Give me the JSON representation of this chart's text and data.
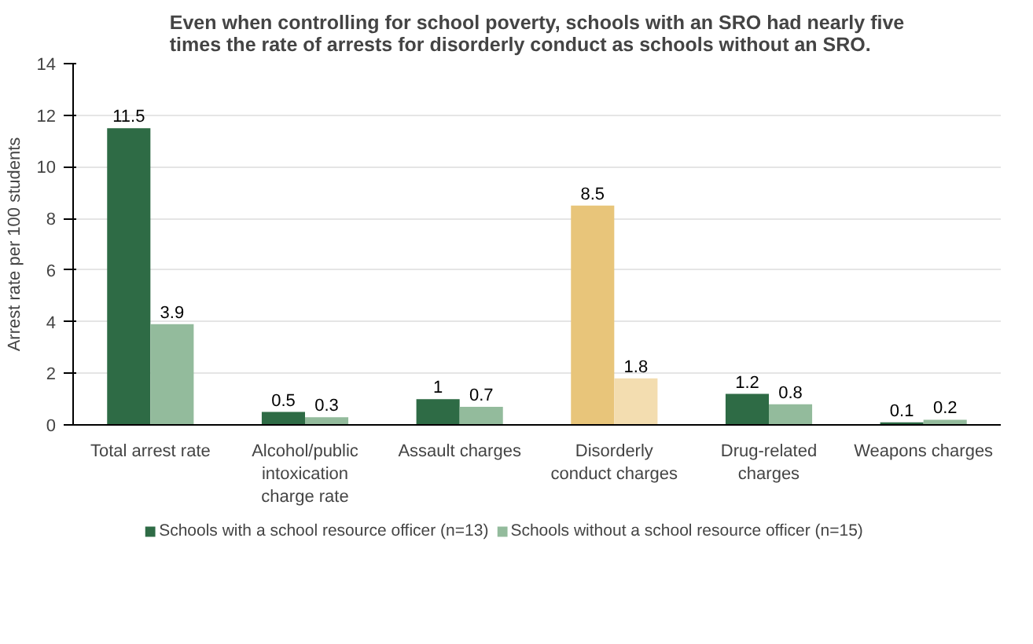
{
  "chart_data": {
    "type": "bar",
    "title": "Even when controlling for school poverty, schools with an SRO had nearly five times the rate of arrests for disorderly conduct as schools without an SRO.",
    "ylabel": "Arrest rate per 100 students",
    "categories": [
      "Total arrest rate",
      "Alcohol/public intoxication charge rate",
      "Assault charges",
      "Disorderly conduct charges",
      "Drug-related charges",
      "Weapons charges"
    ],
    "series": [
      {
        "name": "Schools with a school resource officer (n=13)",
        "color": "#2e6b45",
        "colors": [
          "#2e6b45",
          "#2e6b45",
          "#2e6b45",
          "#e8c57a",
          "#2e6b45",
          "#2e6b45"
        ],
        "values": [
          11.5,
          0.5,
          1,
          8.5,
          1.2,
          0.1
        ]
      },
      {
        "name": "Schools without a school resource officer (n=15)",
        "color": "#93bb9c",
        "colors": [
          "#93bb9c",
          "#93bb9c",
          "#93bb9c",
          "#f3ddb0",
          "#93bb9c",
          "#93bb9c"
        ],
        "values": [
          3.9,
          0.3,
          0.7,
          1.8,
          0.8,
          0.2
        ]
      }
    ],
    "ylim": [
      0,
      14
    ],
    "yticks": [
      0,
      2,
      4,
      6,
      8,
      10,
      12,
      14
    ],
    "grid": "y",
    "legend": "bottom",
    "data_labels": true
  }
}
